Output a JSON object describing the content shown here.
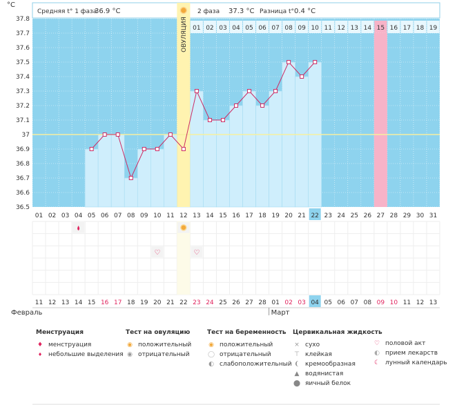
{
  "chart_data": {
    "type": "line",
    "y_unit": "°C",
    "ylim": [
      36.5,
      37.8
    ],
    "y_ticks": [
      "37.8",
      "37.7",
      "37.6",
      "37.5",
      "37.4",
      "37.3",
      "37.2",
      "37.1",
      "37",
      "36.9",
      "36.8",
      "36.7",
      "36.6",
      "36.5"
    ],
    "cycle_days": [
      "01",
      "02",
      "03",
      "04",
      "05",
      "06",
      "07",
      "08",
      "09",
      "10",
      "11",
      "12",
      "13",
      "14",
      "15",
      "16",
      "17",
      "18",
      "19",
      "20",
      "21",
      "22",
      "23",
      "24",
      "25",
      "26",
      "27",
      "28",
      "29",
      "30",
      "31"
    ],
    "calendar_days": [
      "11",
      "12",
      "13",
      "14",
      "15",
      "16",
      "17",
      "18",
      "19",
      "20",
      "21",
      "22",
      "23",
      "24",
      "25",
      "26",
      "27",
      "28",
      "01",
      "02",
      "03",
      "04",
      "05",
      "06",
      "07",
      "08",
      "09",
      "10",
      "11",
      "12",
      "13"
    ],
    "weekend_calendar_indices": [
      5,
      6,
      12,
      13,
      19,
      20,
      26,
      27
    ],
    "today_index": 21,
    "months": [
      "Февраль",
      "Март"
    ],
    "month_start_index": 18,
    "phase2_days": [
      "01",
      "02",
      "03",
      "04",
      "05",
      "06",
      "07",
      "08",
      "09",
      "10",
      "11",
      "12",
      "13",
      "14",
      "15",
      "16",
      "17",
      "18",
      "19"
    ],
    "phase2_start_index": 12,
    "highlight_phase2_index": 14,
    "ovulation_index": 11,
    "ovulation_label": "ОВУЛЯЦИЯ",
    "coverline": 37.0,
    "series": [
      {
        "values": [
          null,
          null,
          null,
          null,
          36.9,
          37.0,
          37.0,
          36.7,
          36.9,
          36.9,
          37.0,
          36.9,
          37.3,
          37.1,
          37.1,
          37.2,
          37.3,
          37.2,
          37.3,
          37.5,
          37.4,
          37.5,
          null,
          null,
          null,
          null,
          null,
          null,
          null,
          null,
          null
        ]
      }
    ],
    "events": {
      "menstruation_spotting_index": 3,
      "ovulation_test_positive_index": 11,
      "intercourse_indices": [
        9,
        12
      ]
    }
  },
  "header": {
    "phase1_label": "Средняя t° 1 фаза",
    "phase1_value": "36.9 °C",
    "phase2_label": "2 фаза",
    "phase2_value": "37.3 °C",
    "diff_label": "Разница t°",
    "diff_value": "0.4 °C"
  },
  "legend": {
    "menstruation": {
      "title": "Менструация",
      "items": [
        "менструация",
        "небольшие выделения"
      ]
    },
    "ovulation_test": {
      "title": "Тест на овуляцию",
      "items": [
        "положительный",
        "отрицательный"
      ]
    },
    "pregnancy_test": {
      "title": "Тест на беременность",
      "items": [
        "положительный",
        "отрицательный",
        "слабоположительный"
      ]
    },
    "cervical": {
      "title": "Цервикальная жидкость",
      "items": [
        "сухо",
        "клейкая",
        "кремообразная",
        "водянистая",
        "яичный белок"
      ]
    },
    "other": {
      "items": [
        "половой акт",
        "прием лекарств",
        "лунный календарь"
      ]
    }
  },
  "colors": {
    "background_blue": "#8ed3ee",
    "bar_fill": "#cfeefc",
    "line": "#cc2b63",
    "ovulation_band": "#fff3b0",
    "highlight_pink": "#f7b3c8",
    "today_blue": "#8ed3ee"
  }
}
